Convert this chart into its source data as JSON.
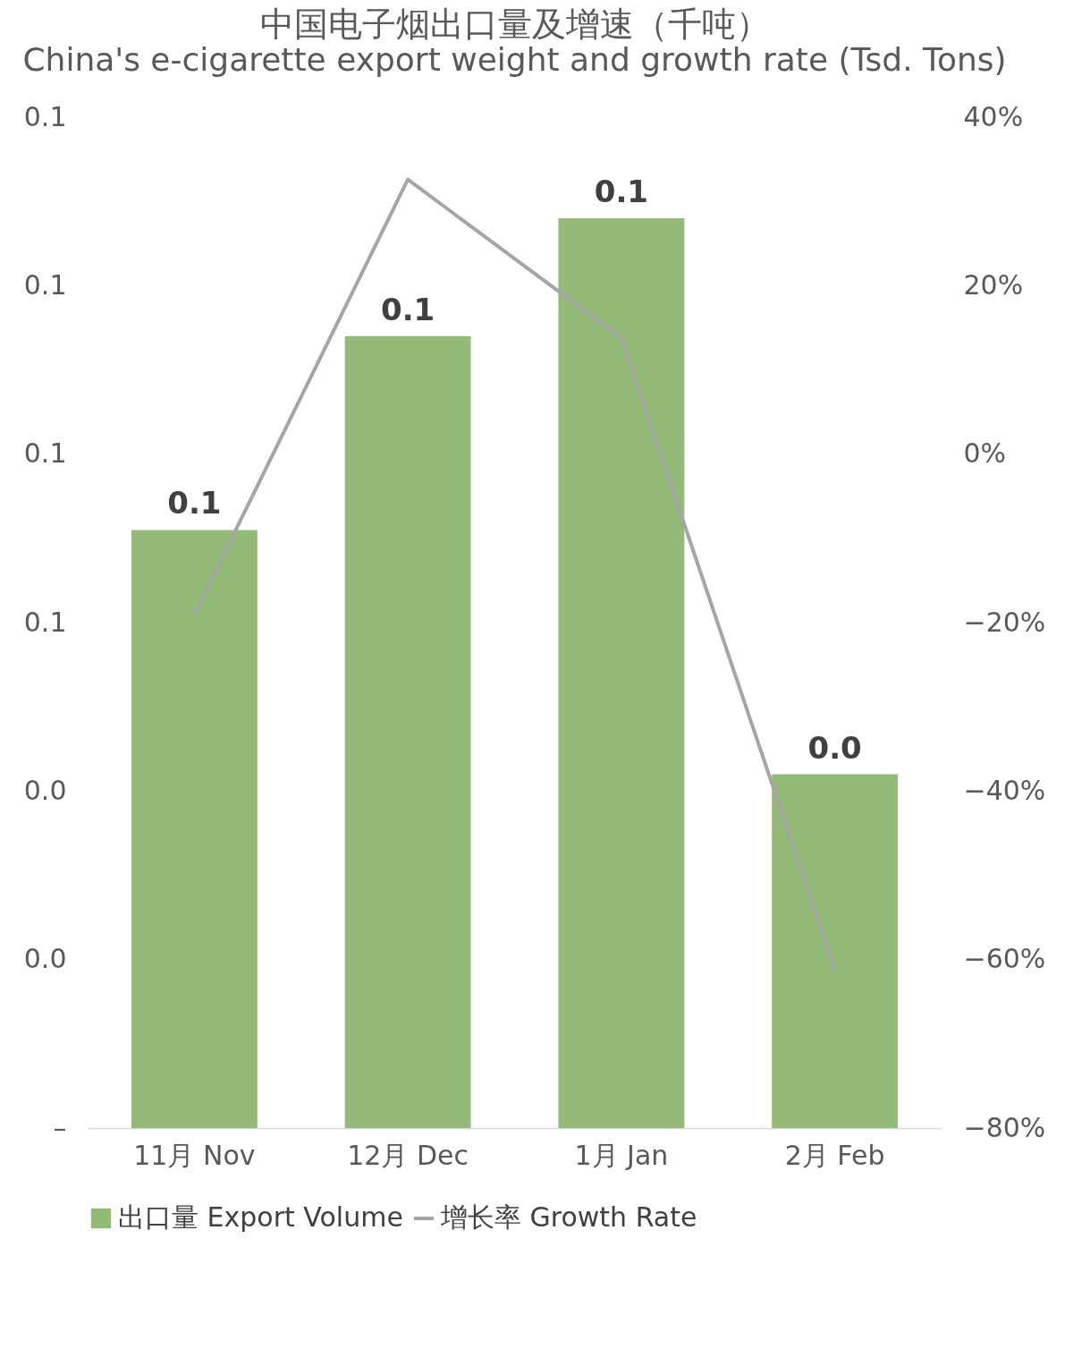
{
  "chart_data": {
    "type": "bar",
    "title": "中国电子烟出口量及增速（千吨）",
    "subtitle": "China's e-cigarette export weight and growth rate (Tsd. Tons)",
    "categories": [
      "11月 Nov",
      "12月 Dec",
      "1月 Jan",
      "2月 Feb"
    ],
    "series": [
      {
        "name": "出口量 Export Volume",
        "color": "#93bb77",
        "values": [
          0.071,
          0.094,
          0.108,
          0.042
        ],
        "value_labels": [
          "0.1",
          "0.1",
          "0.1",
          "0.0"
        ]
      },
      {
        "name": "增长率 Growth Rate",
        "type": "line",
        "axis": "y2",
        "color": "#a5a5a5",
        "values": [
          -19,
          32.6,
          13.8,
          -61.2
        ]
      }
    ],
    "ylim": [
      0,
      0.12
    ],
    "yticks": [
      {
        "value": 0,
        "label": "–"
      },
      {
        "value": 0.02,
        "label": "0.0"
      },
      {
        "value": 0.04,
        "label": "0.0"
      },
      {
        "value": 0.06,
        "label": "0.1"
      },
      {
        "value": 0.08,
        "label": "0.1"
      },
      {
        "value": 0.1,
        "label": "0.1"
      },
      {
        "value": 0.12,
        "label": "0.1"
      }
    ],
    "y2lim": [
      -80,
      40
    ],
    "y2ticks": [
      {
        "value": -80,
        "label": "−80%"
      },
      {
        "value": -60,
        "label": "−60%"
      },
      {
        "value": -40,
        "label": "−40%"
      },
      {
        "value": -20,
        "label": "−20%"
      },
      {
        "value": 0,
        "label": "0%"
      },
      {
        "value": 20,
        "label": "20%"
      },
      {
        "value": 40,
        "label": "40%"
      }
    ],
    "legend": "bottom",
    "line_style": "solid",
    "marker": "none",
    "grid": false
  }
}
